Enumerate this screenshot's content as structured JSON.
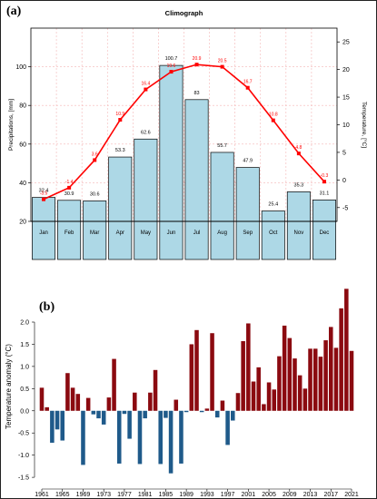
{
  "panels": {
    "a_label": "(a)",
    "b_label": "(b)"
  },
  "colors": {
    "bar_fill": "#add8e6",
    "temp_line": "#ff0000",
    "pos_bar": "#8b0a10",
    "neg_bar": "#1f5a8a"
  },
  "chart_data": [
    {
      "type": "bar",
      "title": "Climograph",
      "ylabel": "Precipitations, [mm]",
      "ylabel2": "Temperature, [°C]",
      "categories": [
        "Jan",
        "Feb",
        "Mar",
        "Apr",
        "May",
        "Jun",
        "Jul",
        "Aug",
        "Sep",
        "Oct",
        "Nov",
        "Dec"
      ],
      "precip_labels": [
        "32.4",
        "30.9",
        "30.6",
        "53.3",
        "62.6",
        "100.7",
        "83",
        "55.7",
        "47.9",
        "25.4",
        "35.3",
        "31.1"
      ],
      "precip_values": [
        32.4,
        30.9,
        30.6,
        53.3,
        62.6,
        100.7,
        83,
        55.7,
        47.9,
        25.4,
        35.3,
        31.1
      ],
      "temp_labels": [
        "-3.5",
        "-1.4",
        "3.6",
        "10.9",
        "16.4",
        "19.6",
        "20.9",
        "20.5",
        "16.7",
        "10.8",
        "4.8",
        "-0.3"
      ],
      "temp_values": [
        -3.5,
        -1.4,
        3.6,
        10.9,
        16.4,
        19.6,
        20.9,
        20.5,
        16.7,
        10.8,
        4.8,
        -0.3
      ],
      "ylim": [
        20,
        120
      ],
      "yticks": [
        "20",
        "40",
        "60",
        "80",
        "100"
      ],
      "y2lim": [
        -7.5,
        27.5
      ],
      "y2ticks": [
        "-5",
        "0",
        "5",
        "10",
        "15",
        "20",
        "25"
      ],
      "grid": true
    },
    {
      "type": "bar",
      "ylabel": "Temperature anomaly (°C)",
      "years": [
        1961,
        1962,
        1963,
        1964,
        1965,
        1966,
        1967,
        1968,
        1969,
        1970,
        1971,
        1972,
        1973,
        1974,
        1975,
        1976,
        1977,
        1978,
        1979,
        1980,
        1981,
        1982,
        1983,
        1984,
        1985,
        1986,
        1987,
        1988,
        1989,
        1990,
        1991,
        1992,
        1993,
        1994,
        1995,
        1996,
        1997,
        1998,
        1999,
        2000,
        2001,
        2002,
        2003,
        2004,
        2005,
        2006,
        2007,
        2008,
        2009,
        2010,
        2011,
        2012,
        2013,
        2014,
        2015,
        2016,
        2017,
        2018,
        2019,
        2020,
        2021
      ],
      "values": [
        0.52,
        0.08,
        -0.72,
        -0.42,
        -0.67,
        0.85,
        0.52,
        0.38,
        -1.22,
        0.29,
        -0.08,
        -0.17,
        -0.31,
        0.3,
        1.17,
        -1.19,
        -0.07,
        -0.63,
        0.41,
        -1.2,
        -0.17,
        0.41,
        0.92,
        -1.2,
        -0.16,
        -1.41,
        0.25,
        -1.19,
        -0.03,
        1.5,
        1.82,
        -0.03,
        0.05,
        1.75,
        -0.15,
        0.23,
        -0.77,
        -0.22,
        0.4,
        1.57,
        1.97,
        0.66,
        0.98,
        0.15,
        0.64,
        0.48,
        1.23,
        1.92,
        1.64,
        1.18,
        0.8,
        0.5,
        1.4,
        1.4,
        1.22,
        1.59,
        1.89,
        1.42,
        2.31,
        2.75,
        1.35
      ],
      "xticks": [
        "1961",
        "1965",
        "1969",
        "1973",
        "1977",
        "1981",
        "1985",
        "1989",
        "1993",
        "1997",
        "2001",
        "2005",
        "2009",
        "2013",
        "2017",
        "2021"
      ],
      "yticks": [
        "-1.5",
        "-1.0",
        "-0.5",
        "0.0",
        "0.5",
        "1.0",
        "1.5",
        "2.0"
      ],
      "ylim": [
        -1.6,
        2.9
      ],
      "grid": false
    }
  ]
}
